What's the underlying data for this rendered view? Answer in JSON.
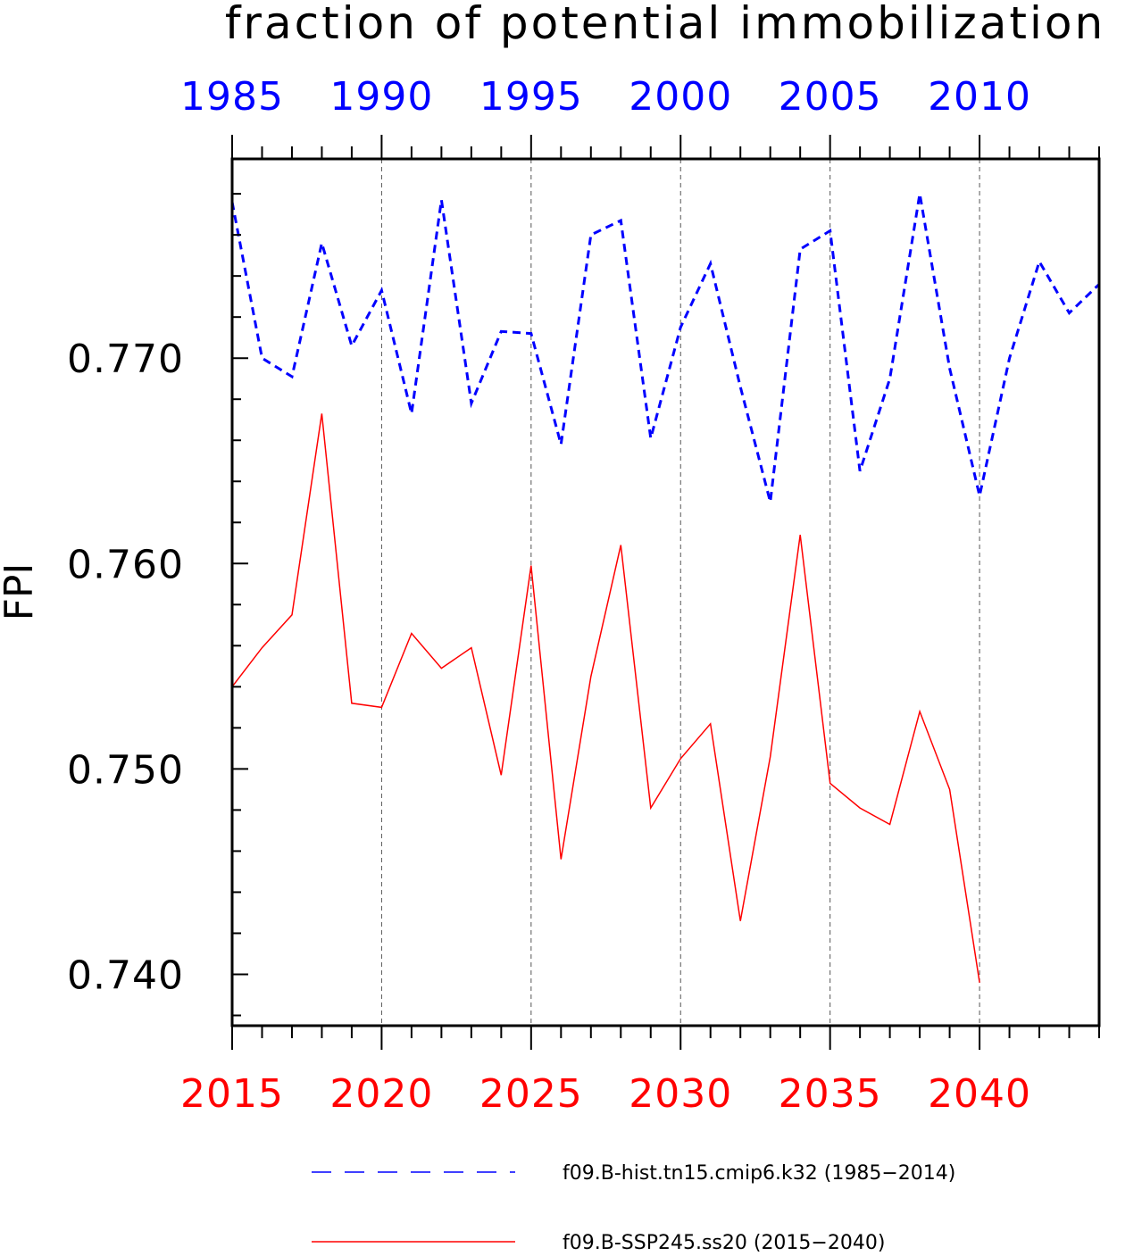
{
  "chart_data": {
    "type": "line",
    "title": "fraction of potential immobilization",
    "ylabel": "FPI",
    "ylim": [
      0.7375,
      0.7797
    ],
    "yticks": [
      0.74,
      0.75,
      0.76,
      0.77
    ],
    "ytick_labels": [
      "0.740",
      "0.750",
      "0.760",
      "0.770"
    ],
    "yminor_step": 0.002,
    "grid": "vertical dashed lines at labeled x ticks",
    "legend_position": "below plot",
    "bottom_axis": {
      "color": "#ff0000",
      "xlim": [
        2015,
        2044
      ],
      "ticks": [
        2015,
        2020,
        2025,
        2030,
        2035,
        2040
      ],
      "tick_labels": [
        "2015",
        "2020",
        "2025",
        "2030",
        "2035",
        "2040"
      ]
    },
    "top_axis": {
      "color": "#0000ff",
      "xlim": [
        1985,
        2014
      ],
      "ticks": [
        1985,
        1990,
        1995,
        2000,
        2005,
        2010
      ],
      "tick_labels": [
        "1985",
        "1990",
        "1995",
        "2000",
        "2005",
        "2010"
      ]
    },
    "series": [
      {
        "name": "f09.B-hist.tn15.cmip6.k32 (1985−2014)",
        "axis": "top",
        "color": "#0000ff",
        "style": "dashed",
        "x": [
          1985,
          1986,
          1987,
          1988,
          1989,
          1990,
          1991,
          1992,
          1993,
          1994,
          1995,
          1996,
          1997,
          1998,
          1999,
          2000,
          2001,
          2002,
          2003,
          2004,
          2005,
          2006,
          2007,
          2008,
          2009,
          2010,
          2011,
          2012,
          2013,
          2014
        ],
        "values": [
          0.7776,
          0.77,
          0.7691,
          0.7756,
          0.7706,
          0.7733,
          0.7673,
          0.7777,
          0.7678,
          0.7713,
          0.7712,
          0.7658,
          0.776,
          0.7767,
          0.7661,
          0.7715,
          0.7746,
          0.7686,
          0.763,
          0.7753,
          0.7762,
          0.7645,
          0.769,
          0.778,
          0.7695,
          0.7633,
          0.77,
          0.7747,
          0.7722,
          0.7736
        ]
      },
      {
        "name": "f09.B-SSP245.ss20 (2015−2040)",
        "axis": "bottom",
        "color": "#ff0000",
        "style": "solid",
        "x": [
          2015,
          2016,
          2017,
          2018,
          2019,
          2020,
          2021,
          2022,
          2023,
          2024,
          2025,
          2026,
          2027,
          2028,
          2029,
          2030,
          2031,
          2032,
          2033,
          2034,
          2035,
          2036,
          2037,
          2038,
          2039,
          2040
        ],
        "values": [
          0.754,
          0.7559,
          0.7575,
          0.7673,
          0.7532,
          0.753,
          0.7566,
          0.7549,
          0.7559,
          0.7497,
          0.7599,
          0.7456,
          0.7545,
          0.7609,
          0.7481,
          0.7505,
          0.7522,
          0.7426,
          0.7506,
          0.7614,
          0.7493,
          0.7481,
          0.7473,
          0.7528,
          0.749,
          0.7396
        ]
      }
    ]
  }
}
